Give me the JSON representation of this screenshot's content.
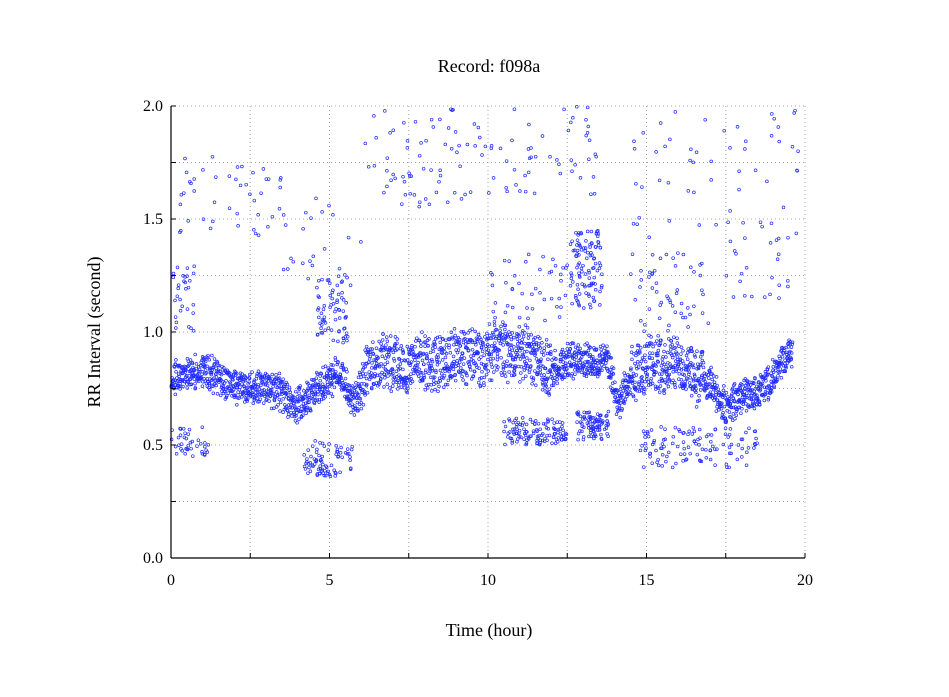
{
  "chart_data": {
    "type": "scatter",
    "title": "Record:  f098a",
    "xlabel": "Time (hour)",
    "ylabel": "RR Interval (second)",
    "xlim": [
      0,
      20
    ],
    "ylim": [
      0.0,
      2.0
    ],
    "xticks": [
      "0",
      "5",
      "10",
      "15",
      "20"
    ],
    "yticks": [
      "0.0",
      "0.5",
      "1.0",
      "1.5",
      "2.0"
    ],
    "grid": true,
    "point_color": "#1f2bff",
    "series": [
      {
        "baseline": [
          [
            0.0,
            0.8
          ],
          [
            0.5,
            0.82
          ],
          [
            1.0,
            0.83
          ],
          [
            1.5,
            0.8
          ],
          [
            2.0,
            0.76
          ],
          [
            2.5,
            0.76
          ],
          [
            3.0,
            0.76
          ],
          [
            3.5,
            0.73
          ],
          [
            3.9,
            0.66
          ],
          [
            4.3,
            0.72
          ],
          [
            4.8,
            0.76
          ],
          [
            5.3,
            0.82
          ],
          [
            5.8,
            0.7
          ],
          [
            6.2,
            0.84
          ],
          [
            6.8,
            0.88
          ],
          [
            7.3,
            0.84
          ],
          [
            7.8,
            0.88
          ],
          [
            8.3,
            0.86
          ],
          [
            8.8,
            0.88
          ],
          [
            9.3,
            0.9
          ],
          [
            9.8,
            0.88
          ],
          [
            10.3,
            0.93
          ],
          [
            10.8,
            0.9
          ],
          [
            11.2,
            0.91
          ],
          [
            11.6,
            0.86
          ],
          [
            12.0,
            0.83
          ],
          [
            12.5,
            0.87
          ],
          [
            13.0,
            0.88
          ],
          [
            13.5,
            0.87
          ],
          [
            13.8,
            0.86
          ],
          [
            14.1,
            0.68
          ],
          [
            14.5,
            0.8
          ],
          [
            15.0,
            0.86
          ],
          [
            15.5,
            0.86
          ],
          [
            16.0,
            0.86
          ],
          [
            16.5,
            0.8
          ],
          [
            17.0,
            0.78
          ],
          [
            17.5,
            0.66
          ],
          [
            18.0,
            0.72
          ],
          [
            18.5,
            0.73
          ],
          [
            19.0,
            0.8
          ],
          [
            19.6,
            0.92
          ]
        ],
        "outlier_clusters": [
          {
            "x": [
              0.0,
              1.2
            ],
            "y": [
              0.45,
              0.58
            ],
            "n": 40
          },
          {
            "x": [
              0.0,
              0.8
            ],
            "y": [
              1.0,
              1.3
            ],
            "n": 30
          },
          {
            "x": [
              0.2,
              3.5
            ],
            "y": [
              1.4,
              1.78
            ],
            "n": 45
          },
          {
            "x": [
              4.2,
              5.8
            ],
            "y": [
              0.36,
              0.52
            ],
            "n": 80
          },
          {
            "x": [
              4.6,
              5.6
            ],
            "y": [
              0.95,
              1.25
            ],
            "n": 70
          },
          {
            "x": [
              3.5,
              6.0
            ],
            "y": [
              1.2,
              1.6
            ],
            "n": 25
          },
          {
            "x": [
              6.0,
              9.5
            ],
            "y": [
              1.55,
              2.0
            ],
            "n": 60
          },
          {
            "x": [
              9.5,
              13.5
            ],
            "y": [
              1.6,
              2.0
            ],
            "n": 55
          },
          {
            "x": [
              10.5,
              12.5
            ],
            "y": [
              0.5,
              0.62
            ],
            "n": 120
          },
          {
            "x": [
              12.8,
              13.8
            ],
            "y": [
              0.52,
              0.65
            ],
            "n": 90
          },
          {
            "x": [
              12.6,
              13.6
            ],
            "y": [
              1.1,
              1.45
            ],
            "n": 110
          },
          {
            "x": [
              10.0,
              12.5
            ],
            "y": [
              1.05,
              1.35
            ],
            "n": 45
          },
          {
            "x": [
              14.8,
              18.5
            ],
            "y": [
              0.4,
              0.58
            ],
            "n": 120
          },
          {
            "x": [
              14.5,
              17.0
            ],
            "y": [
              1.0,
              1.35
            ],
            "n": 55
          },
          {
            "x": [
              14.5,
              19.8
            ],
            "y": [
              1.4,
              1.98
            ],
            "n": 55
          },
          {
            "x": [
              17.5,
              19.5
            ],
            "y": [
              1.15,
              1.5
            ],
            "n": 25
          }
        ]
      }
    ]
  }
}
